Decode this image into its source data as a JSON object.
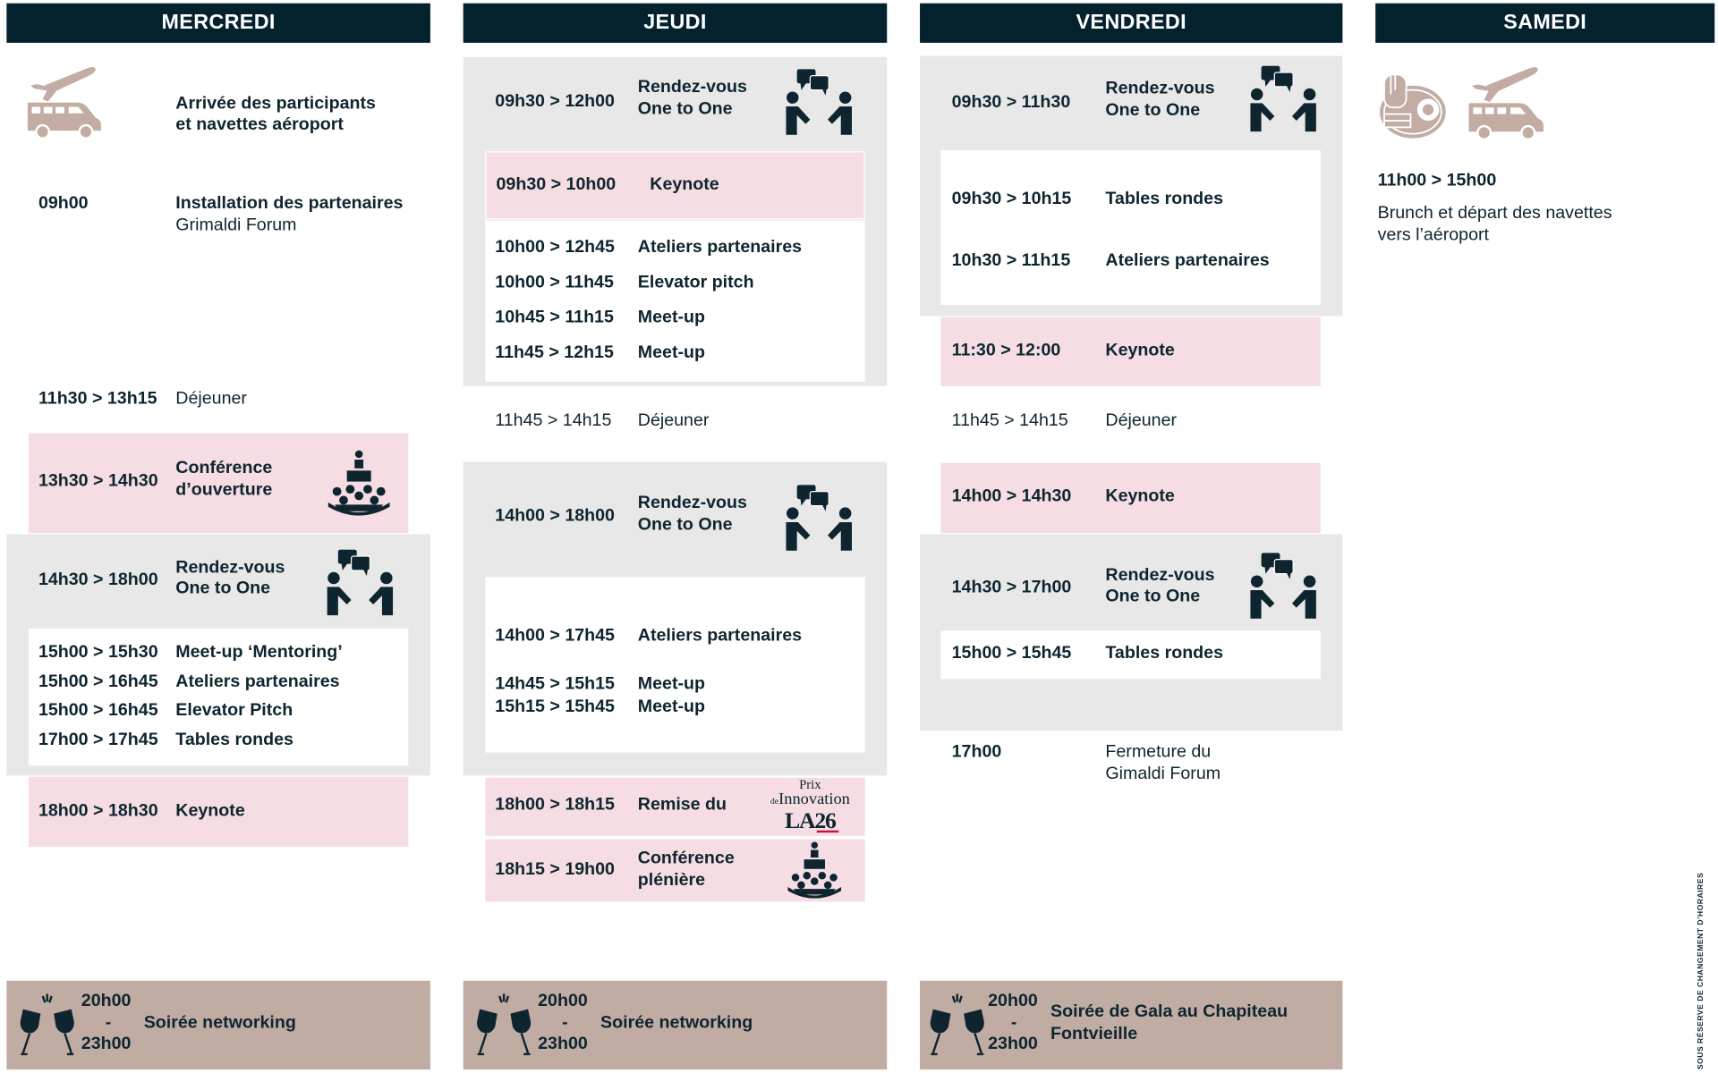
{
  "colors": {
    "header": "#03222e",
    "text": "#0e2530",
    "grey_block": "#e8e8e8",
    "highlight_pink": "#f5dde3",
    "evening_taupe": "#c1aca3",
    "icon_taupe": "#c2aca3"
  },
  "days": {
    "mercredi": {
      "title": "MERCREDI",
      "arrival": {
        "icon": "plane-van-icon",
        "text_line1": "Arrivée des participants",
        "text_line2": "et navettes aéroport"
      },
      "install": {
        "time": "09h00",
        "title": "Installation des partenaires",
        "subtitle": "Grimaldi Forum"
      },
      "lunch": {
        "time": "11h30 > 13h15",
        "title": "Déjeuner"
      },
      "opening": {
        "time": "13h30 > 14h30",
        "title_line1": "Conférence",
        "title_line2": "d’ouverture",
        "icon": "conference-icon"
      },
      "rdv": {
        "time": "14h30 > 18h00",
        "title_line1": "Rendez-vous",
        "title_line2": "One to One",
        "icon": "handshake-chat-icon"
      },
      "sessions": [
        {
          "time": "15h00 > 15h30",
          "title": "Meet-up ‘Mentoring’"
        },
        {
          "time": "15h00 > 16h45",
          "title": "Ateliers partenaires"
        },
        {
          "time": "15h00 > 16h45",
          "title": "Elevator Pitch"
        },
        {
          "time": "17h00 > 17h45",
          "title": "Tables rondes"
        }
      ],
      "keynote": {
        "time": "18h00 > 18h30",
        "title": "Keynote"
      },
      "evening": {
        "start": "20h00",
        "sep": "-",
        "end": "23h00",
        "title_line1": "Soirée networking",
        "title_line2": "",
        "icon": "champagne-glasses-icon"
      }
    },
    "jeudi": {
      "title": "JEUDI",
      "rdv_am": {
        "time": "09h30 > 12h00",
        "title_line1": "Rendez-vous",
        "title_line2": "One to One",
        "icon": "handshake-chat-icon"
      },
      "keynote_am": {
        "time": "09h30 > 10h00",
        "title": "Keynote"
      },
      "sessions_am": [
        {
          "time": "10h00 > 12h45",
          "title": "Ateliers partenaires"
        },
        {
          "time": "10h00 > 11h45",
          "title": "Elevator pitch"
        },
        {
          "time": "10h45 > 11h15",
          "title": "Meet-up"
        },
        {
          "time": "11h45 > 12h15",
          "title": "Meet-up"
        }
      ],
      "lunch": {
        "time": "11h45 > 14h15",
        "title": "Déjeuner"
      },
      "rdv_pm": {
        "time": "14h00 > 18h00",
        "title_line1": "Rendez-vous",
        "title_line2": "One to One",
        "icon": "handshake-chat-icon"
      },
      "sessions_pm": [
        {
          "time": "14h00 > 17h45",
          "title": "Ateliers partenaires"
        },
        {
          "time": "14h45 > 15h15",
          "title": "Meet-up"
        },
        {
          "time": "15h15 > 15h45",
          "title": "Meet-up"
        }
      ],
      "award": {
        "time": "18h00 > 18h15",
        "title": "Remise du",
        "logo_line1": "Prix",
        "logo_line2_small": "de",
        "logo_line2": "Innovation",
        "logo_line3": "LA26"
      },
      "plenary": {
        "time": "18h15 > 19h00",
        "title_line1": "Conférence",
        "title_line2": "plénière",
        "icon": "conference-icon"
      },
      "evening": {
        "start": "20h00",
        "sep": "-",
        "end": "23h00",
        "title_line1": "Soirée networking",
        "icon": "champagne-glasses-icon"
      }
    },
    "vendredi": {
      "title": "VENDREDI",
      "rdv_am": {
        "time": "09h30 > 11h30",
        "title_line1": "Rendez-vous",
        "title_line2": "One to One",
        "icon": "handshake-chat-icon"
      },
      "sessions_am": [
        {
          "time": "09h30 > 10h15",
          "title": "Tables rondes"
        },
        {
          "time": "10h30 > 11h15",
          "title": "Ateliers partenaires"
        }
      ],
      "keynote_am": {
        "time": "11:30 > 12:00",
        "title": "Keynote"
      },
      "lunch": {
        "time": "11h45 > 14h15",
        "title": "Déjeuner"
      },
      "keynote_pm": {
        "time": "14h00 > 14h30",
        "title": "Keynote"
      },
      "rdv_pm": {
        "time": "14h30 > 17h00",
        "title_line1": "Rendez-vous",
        "title_line2": "One to One",
        "icon": "handshake-chat-icon"
      },
      "sessions_pm": [
        {
          "time": "15h00 > 15h45",
          "title": "Tables rondes"
        }
      ],
      "closing": {
        "time": "17h00",
        "title_line1": "Fermeture du",
        "title_line2": "Gimaldi Forum"
      },
      "evening": {
        "start": "20h00",
        "sep": "-",
        "end": "23h00",
        "title_line1": "Soirée de Gala au Chapiteau",
        "title_line2": "Fontvieille",
        "icon": "champagne-glasses-icon"
      }
    },
    "samedi": {
      "title": "SAMEDI",
      "icons": [
        "brunch-plate-icon",
        "plane-van-icon"
      ],
      "brunch": {
        "time": "11h00 > 15h00",
        "text_line1": "Brunch et départ des navettes",
        "text_line2": "vers l’aéroport"
      }
    }
  },
  "disclaimer": "SOUS RÉSERVE DE CHANGEMENT D’HORAIRES"
}
